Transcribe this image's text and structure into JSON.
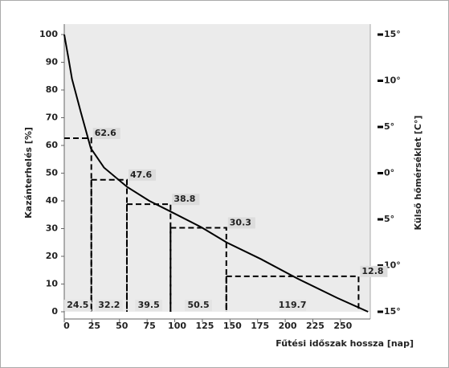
{
  "chart_data": {
    "type": "line",
    "y_label": "Kazánterhelés [%]",
    "y2_label": "Külső hőmérséklet [C°]",
    "x_label": "Fűtési időszak hossza [nap]",
    "xlim": [
      0,
      277
    ],
    "xticks": [
      0,
      25,
      50,
      75,
      100,
      125,
      150,
      175,
      200,
      225,
      250
    ],
    "ylim": [
      0,
      100
    ],
    "yticks": [
      0,
      10,
      20,
      30,
      40,
      50,
      60,
      70,
      80,
      90,
      100
    ],
    "y2lim": [
      -15,
      15
    ],
    "y2ticks": [
      {
        "value": -15,
        "label": "15°"
      },
      {
        "value": -10,
        "label": "10°"
      },
      {
        "value": -5,
        "label": "5°"
      },
      {
        "value": 0,
        "label": "0°"
      },
      {
        "value": 5,
        "label": "5°"
      },
      {
        "value": 10,
        "label": "10°"
      },
      {
        "value": 15,
        "label": "15°"
      }
    ],
    "series": [
      {
        "color": "#000000",
        "x": [
          0,
          4,
          7,
          15,
          24,
          36,
          57,
          77,
          97,
          124,
          147,
          178,
          211,
          247,
          275
        ],
        "values": [
          100,
          91,
          84,
          72,
          59,
          52,
          45,
          40,
          36,
          30.5,
          25,
          19,
          12,
          5,
          0
        ]
      }
    ],
    "steps": {
      "color": "#000000",
      "durations": [
        24.5,
        32.2,
        39.5,
        50.5,
        119.7
      ],
      "levels": [
        62.6,
        47.6,
        38.8,
        30.3,
        12.8
      ]
    }
  }
}
